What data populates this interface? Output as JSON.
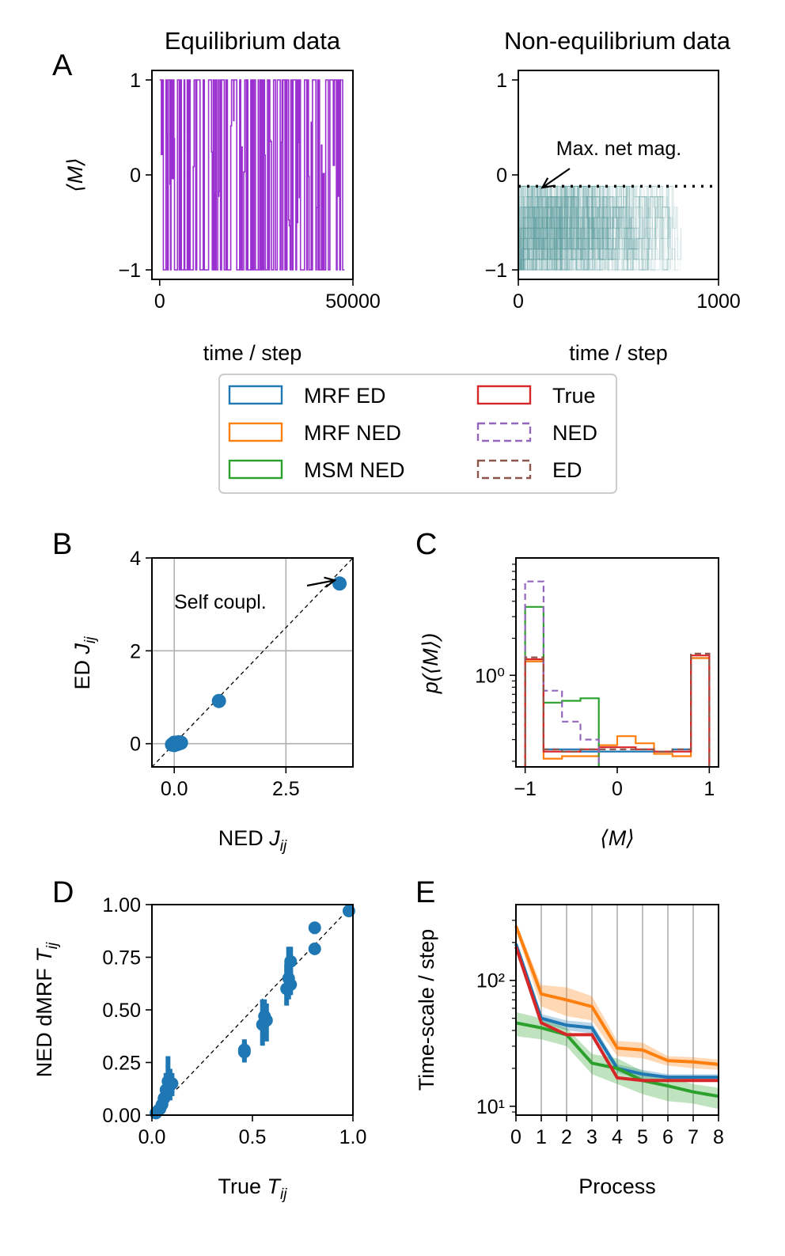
{
  "colors": {
    "MRF ED": "#1f77b4",
    "MRF NED": "#ff7f0e",
    "MSM NED": "#2ca02c",
    "True": "#d62728",
    "NED": "#9467bd",
    "ED": "#8c564b",
    "equilibrium_trace": "#9b30d0",
    "nonequilibrium_trace": "#5f9ea0",
    "grid": "#b0b0b0"
  },
  "legend": {
    "items": [
      {
        "label": "MRF ED",
        "key": "MRF ED",
        "style": "solid"
      },
      {
        "label": "MRF NED",
        "key": "MRF NED",
        "style": "solid"
      },
      {
        "label": "MSM NED",
        "key": "MSM NED",
        "style": "solid"
      },
      {
        "label": "True",
        "key": "True",
        "style": "solid"
      },
      {
        "label": "NED",
        "key": "NED",
        "style": "dashed"
      },
      {
        "label": "ED",
        "key": "ED",
        "style": "dashed"
      }
    ]
  },
  "chart_data": [
    {
      "panel": "A",
      "type": "line",
      "title": "Equilibrium data",
      "xlabel": "time / step",
      "ylabel": "⟨M⟩",
      "xlim": [
        -2000,
        50000
      ],
      "ylim": [
        -1.1,
        1.1
      ],
      "xticks": [
        0,
        50000
      ],
      "xtick_labels": [
        "0",
        "50000"
      ],
      "yticks": [
        -1,
        0,
        1
      ],
      "ytick_labels": [
        "−1",
        "0",
        "1"
      ],
      "series": [
        {
          "color_key": "equilibrium_trace",
          "x_range": [
            0,
            47800
          ],
          "values_between": [
            -1,
            1
          ]
        }
      ]
    },
    {
      "panel": "A",
      "type": "line",
      "title": "Non-equilibrium data",
      "xlabel": "time / step",
      "ylabel": "",
      "xlim": [
        0,
        1000
      ],
      "ylim": [
        -1.1,
        1.1
      ],
      "xticks": [
        0,
        1000
      ],
      "xtick_labels": [
        "0",
        "1000"
      ],
      "yticks": [
        -1,
        0,
        1
      ],
      "ytick_labels": [
        "−1",
        "0",
        "1"
      ],
      "hline": {
        "y": -0.12,
        "style": "dotted"
      },
      "annotation": {
        "text": "Max. net mag.",
        "x": 120,
        "y": -0.1
      },
      "series": [
        {
          "color_key": "nonequilibrium_trace",
          "x_range": [
            0,
            820
          ],
          "values_between": [
            -1,
            -0.12
          ]
        }
      ]
    },
    {
      "panel": "B",
      "type": "scatter",
      "xlabel_text": "NED ",
      "xlabel_italic": "J",
      "xlabel_sub": "ij",
      "ylabel_text": "ED ",
      "ylabel_italic": "J",
      "ylabel_sub": "ij",
      "xlim": [
        -0.5,
        4.0
      ],
      "ylim": [
        -0.5,
        4.0
      ],
      "xticks": [
        0.0,
        2.5
      ],
      "xtick_labels": [
        "0.0",
        "2.5"
      ],
      "yticks": [
        0,
        2,
        4
      ],
      "ytick_labels": [
        "0",
        "2",
        "4"
      ],
      "grid": true,
      "diagonal": true,
      "annotation": {
        "text": "Self coupl.",
        "x": 3.7,
        "y": 3.45
      },
      "points": [
        {
          "x": -0.05,
          "y": -0.02
        },
        {
          "x": -0.02,
          "y": 0.0
        },
        {
          "x": 0.0,
          "y": -0.03
        },
        {
          "x": 0.02,
          "y": 0.01
        },
        {
          "x": 0.05,
          "y": 0.02
        },
        {
          "x": 0.08,
          "y": 0.0
        },
        {
          "x": 0.1,
          "y": 0.03
        },
        {
          "x": 0.12,
          "y": 0.01
        },
        {
          "x": 0.15,
          "y": 0.02
        },
        {
          "x": 0.0,
          "y": 0.02
        },
        {
          "x": 0.06,
          "y": -0.01
        },
        {
          "x": 1.0,
          "y": 0.92
        },
        {
          "x": 3.7,
          "y": 3.45
        }
      ]
    },
    {
      "panel": "C",
      "type": "step-histogram",
      "xlabel": "⟨M⟩",
      "ylabel_italic": "p",
      "ylabel_rest": "(⟨M⟩)",
      "xlim": [
        -1.1,
        1.1
      ],
      "ylim_log": [
        0.18,
        9.0
      ],
      "yscale": "log",
      "xticks": [
        -1,
        0,
        1
      ],
      "xtick_labels": [
        "−1",
        "0",
        "1"
      ],
      "yticks": [
        1
      ],
      "ytick_labels": [
        "10⁰"
      ],
      "bin_edges": [
        -1.0,
        -0.8,
        -0.6,
        -0.4,
        -0.2,
        0.0,
        0.2,
        0.4,
        0.6,
        0.8,
        1.0
      ],
      "series": [
        {
          "name": "MRF ED",
          "key": "MRF ED",
          "style": "solid",
          "values": [
            1.3,
            0.25,
            0.25,
            0.24,
            0.24,
            0.24,
            0.24,
            0.24,
            0.25,
            1.38
          ]
        },
        {
          "name": "MRF NED",
          "key": "MRF NED",
          "style": "solid",
          "values": [
            1.3,
            0.21,
            0.22,
            0.22,
            0.27,
            0.32,
            0.28,
            0.23,
            0.22,
            1.38
          ]
        },
        {
          "name": "MSM NED",
          "key": "MSM NED",
          "style": "solid",
          "values": [
            3.6,
            0.6,
            0.62,
            0.65,
            0.0001
          ]
        },
        {
          "name": "True",
          "key": "True",
          "style": "solid",
          "values": [
            1.35,
            0.24,
            0.24,
            0.25,
            0.26,
            0.26,
            0.25,
            0.24,
            0.24,
            1.45
          ]
        },
        {
          "name": "NED",
          "key": "NED",
          "style": "dashed",
          "values": [
            5.8,
            0.75,
            0.42,
            0.3,
            0.0001
          ]
        },
        {
          "name": "ED",
          "key": "ED",
          "style": "dashed",
          "values": [
            1.4,
            0.25,
            0.24,
            0.25,
            0.25,
            0.25,
            0.25,
            0.24,
            0.25,
            1.5
          ]
        }
      ]
    },
    {
      "panel": "D",
      "type": "scatter",
      "xlabel_text": "True ",
      "xlabel_italic": "T",
      "xlabel_sub": "ij",
      "ylabel_text": "NED dMRF ",
      "ylabel_italic": "T",
      "ylabel_sub": "ij",
      "xlim": [
        0.0,
        1.0
      ],
      "ylim": [
        0.0,
        1.0
      ],
      "xticks": [
        0.0,
        0.5,
        1.0
      ],
      "xtick_labels": [
        "0.0",
        "0.5",
        "1.0"
      ],
      "yticks": [
        0.0,
        0.25,
        0.5,
        0.75,
        1.0
      ],
      "ytick_labels": [
        "0.00",
        "0.25",
        "0.50",
        "0.75",
        "1.00"
      ],
      "diagonal": true,
      "points": [
        {
          "x": 0.02,
          "y": 0.01,
          "lo": 0.0,
          "hi": 0.03
        },
        {
          "x": 0.03,
          "y": 0.02,
          "lo": 0.0,
          "hi": 0.05
        },
        {
          "x": 0.04,
          "y": 0.03,
          "lo": 0.01,
          "hi": 0.06
        },
        {
          "x": 0.05,
          "y": 0.05,
          "lo": 0.02,
          "hi": 0.09
        },
        {
          "x": 0.06,
          "y": 0.08,
          "lo": 0.03,
          "hi": 0.14
        },
        {
          "x": 0.07,
          "y": 0.12,
          "lo": 0.05,
          "hi": 0.2
        },
        {
          "x": 0.08,
          "y": 0.16,
          "lo": 0.08,
          "hi": 0.28
        },
        {
          "x": 0.09,
          "y": 0.14,
          "lo": 0.07,
          "hi": 0.22
        },
        {
          "x": 0.1,
          "y": 0.15,
          "lo": 0.09,
          "hi": 0.2
        },
        {
          "x": 0.46,
          "y": 0.3,
          "lo": 0.25,
          "hi": 0.35
        },
        {
          "x": 0.46,
          "y": 0.31,
          "lo": 0.27,
          "hi": 0.36
        },
        {
          "x": 0.55,
          "y": 0.43,
          "lo": 0.33,
          "hi": 0.55
        },
        {
          "x": 0.56,
          "y": 0.47,
          "lo": 0.38,
          "hi": 0.55
        },
        {
          "x": 0.57,
          "y": 0.45,
          "lo": 0.35,
          "hi": 0.53
        },
        {
          "x": 0.67,
          "y": 0.6,
          "lo": 0.52,
          "hi": 0.72
        },
        {
          "x": 0.68,
          "y": 0.65,
          "lo": 0.55,
          "hi": 0.8
        },
        {
          "x": 0.69,
          "y": 0.62,
          "lo": 0.57,
          "hi": 0.7
        },
        {
          "x": 0.69,
          "y": 0.73,
          "lo": 0.65,
          "hi": 0.8
        },
        {
          "x": 0.81,
          "y": 0.79,
          "lo": 0.78,
          "hi": 0.81
        },
        {
          "x": 0.81,
          "y": 0.89,
          "lo": 0.86,
          "hi": 0.9
        },
        {
          "x": 0.98,
          "y": 0.97,
          "lo": 0.96,
          "hi": 0.98
        }
      ]
    },
    {
      "panel": "E",
      "type": "line",
      "xlabel": "Process",
      "ylabel": "Time-scale / step",
      "yscale": "log",
      "xlim": [
        0,
        8
      ],
      "ylim_log": [
        8.5,
        400
      ],
      "xticks": [
        0,
        1,
        2,
        3,
        4,
        5,
        6,
        7,
        8
      ],
      "xtick_labels": [
        "0",
        "1",
        "2",
        "3",
        "4",
        "5",
        "6",
        "7",
        "8"
      ],
      "yticks": [
        10,
        100
      ],
      "ytick_labels": [
        "10¹",
        "10²"
      ],
      "vertical_grid": true,
      "x": [
        0,
        1,
        2,
        3,
        4,
        5,
        6,
        7,
        8
      ],
      "series": [
        {
          "name": "MRF NED",
          "key": "MRF NED",
          "values": [
            270,
            78,
            70,
            62,
            29,
            28,
            23,
            22.5,
            21.5
          ],
          "band_lo": [
            250,
            62,
            52,
            48,
            25,
            24,
            21,
            20,
            19.5
          ],
          "band_hi": [
            290,
            92,
            88,
            75,
            33,
            32,
            25,
            24.5,
            23.5
          ]
        },
        {
          "name": "MRF ED",
          "key": "MRF ED",
          "values": [
            195,
            50,
            44,
            42,
            20,
            18,
            17,
            17,
            17
          ],
          "band_lo": [
            185,
            46,
            40,
            38,
            18.5,
            16.5,
            16,
            16,
            16
          ],
          "band_hi": [
            205,
            54,
            48,
            46,
            21.5,
            19.5,
            18,
            18,
            18
          ]
        },
        {
          "name": "MSM NED",
          "key": "MSM NED",
          "values": [
            46,
            42,
            37,
            22,
            20,
            16,
            14.5,
            13,
            12
          ],
          "band_lo": [
            36,
            34,
            30,
            18,
            15,
            12.5,
            11,
            10.5,
            9.5
          ],
          "band_hi": [
            56,
            50,
            42,
            26,
            24,
            19,
            17,
            15,
            14
          ]
        },
        {
          "name": "True",
          "key": "True",
          "values": [
            185,
            46,
            37,
            37,
            16.8,
            16,
            16,
            16,
            16
          ]
        }
      ]
    }
  ],
  "panel_letters": [
    "A",
    "B",
    "C",
    "D",
    "E"
  ]
}
